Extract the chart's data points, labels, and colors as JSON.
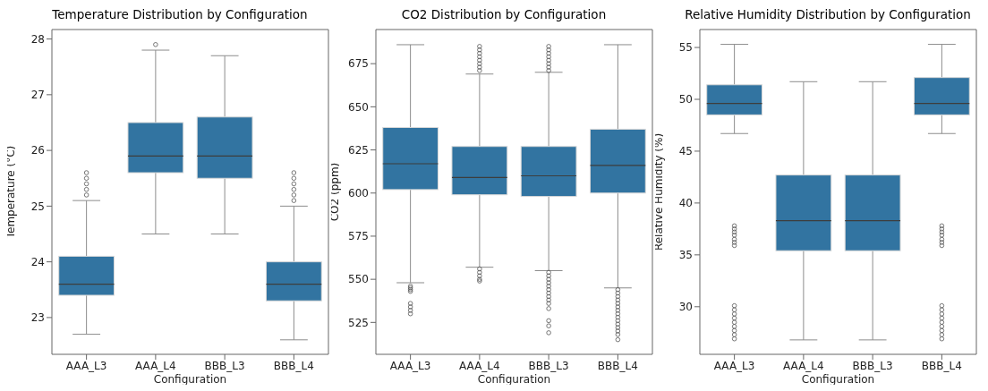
{
  "chart_data": [
    {
      "type": "box",
      "title": "Temperature Distribution by Configuration",
      "xlabel": "Configuration",
      "ylabel": "Temperature (°C)",
      "categories": [
        "AAA_L3",
        "AAA_L4",
        "BBB_L3",
        "BBB_L4"
      ],
      "color": "#3274a1",
      "ylim": [
        22.34,
        28.17
      ],
      "yticks": [
        23,
        24,
        25,
        26,
        27,
        28
      ],
      "boxes": [
        {
          "low": 22.7,
          "q1": 23.4,
          "median": 23.6,
          "q3": 24.1,
          "high": 25.1,
          "outliers": [
            25.2,
            25.3,
            25.4,
            25.5,
            25.6
          ]
        },
        {
          "low": 24.5,
          "q1": 25.6,
          "median": 25.9,
          "q3": 26.5,
          "high": 27.8,
          "outliers": [
            27.9
          ]
        },
        {
          "low": 24.5,
          "q1": 25.5,
          "median": 25.9,
          "q3": 26.6,
          "high": 27.7
        },
        {
          "low": 22.6,
          "q1": 23.3,
          "median": 23.6,
          "q3": 24.0,
          "high": 25.0,
          "outliers": [
            25.1,
            25.2,
            25.3,
            25.4,
            25.5,
            25.6
          ]
        }
      ]
    },
    {
      "type": "box",
      "title": "CO2 Distribution by Configuration",
      "xlabel": "Configuration",
      "ylabel": "CO2 (ppm)",
      "categories": [
        "AAA_L3",
        "AAA_L4",
        "BBB_L3",
        "BBB_L4"
      ],
      "color": "#3274a1",
      "ylim": [
        506.5,
        694.8
      ],
      "yticks": [
        525,
        550,
        575,
        600,
        625,
        650,
        675
      ],
      "boxes": [
        {
          "low": 548,
          "q1": 602,
          "median": 617,
          "q3": 638,
          "high": 686,
          "outliers": [
            546,
            545,
            544,
            543,
            536,
            534,
            532,
            530
          ]
        },
        {
          "low": 557,
          "q1": 599,
          "median": 609,
          "q3": 627,
          "high": 669,
          "outliers": [
            671,
            673,
            675,
            677,
            679,
            681,
            683,
            685,
            556,
            554,
            552,
            550,
            549
          ]
        },
        {
          "low": 555,
          "q1": 598,
          "median": 610,
          "q3": 627,
          "high": 670,
          "outliers": [
            671,
            673,
            675,
            677,
            679,
            681,
            683,
            685,
            554,
            552,
            550,
            548,
            546,
            544,
            542,
            540,
            538,
            536,
            533,
            526,
            523,
            519
          ]
        },
        {
          "low": 545,
          "q1": 600,
          "median": 616,
          "q3": 637,
          "high": 686,
          "outliers": [
            544,
            542,
            540,
            538,
            536,
            534,
            532,
            530,
            528,
            526,
            524,
            522,
            520,
            518,
            515
          ]
        }
      ]
    },
    {
      "type": "box",
      "title": "Relative Humidity Distribution by Configuration",
      "xlabel": "Configuration",
      "ylabel": "Relative Humidity (%)",
      "categories": [
        "AAA_L3",
        "AAA_L4",
        "BBB_L3",
        "BBB_L4"
      ],
      "color": "#3274a1",
      "ylim": [
        25.41,
        56.73
      ],
      "yticks": [
        30,
        35,
        40,
        45,
        50,
        55
      ],
      "boxes": [
        {
          "low": 46.7,
          "q1": 48.5,
          "median": 49.6,
          "q3": 51.4,
          "high": 55.3,
          "outliers": [
            37.8,
            37.5,
            37.2,
            36.9,
            36.5,
            36.2,
            35.9,
            30.1,
            29.7,
            29.3,
            28.9,
            28.5,
            28.1,
            27.7,
            27.3,
            26.9
          ]
        },
        {
          "low": 26.8,
          "q1": 35.4,
          "median": 38.3,
          "q3": 42.7,
          "high": 51.7
        },
        {
          "low": 26.8,
          "q1": 35.4,
          "median": 38.3,
          "q3": 42.7,
          "high": 51.7
        },
        {
          "low": 46.7,
          "q1": 48.5,
          "median": 49.6,
          "q3": 52.1,
          "high": 55.3,
          "outliers": [
            37.8,
            37.5,
            37.2,
            36.9,
            36.5,
            36.2,
            35.9,
            30.1,
            29.7,
            29.3,
            28.9,
            28.5,
            28.1,
            27.7,
            27.3,
            26.9
          ]
        }
      ]
    }
  ]
}
